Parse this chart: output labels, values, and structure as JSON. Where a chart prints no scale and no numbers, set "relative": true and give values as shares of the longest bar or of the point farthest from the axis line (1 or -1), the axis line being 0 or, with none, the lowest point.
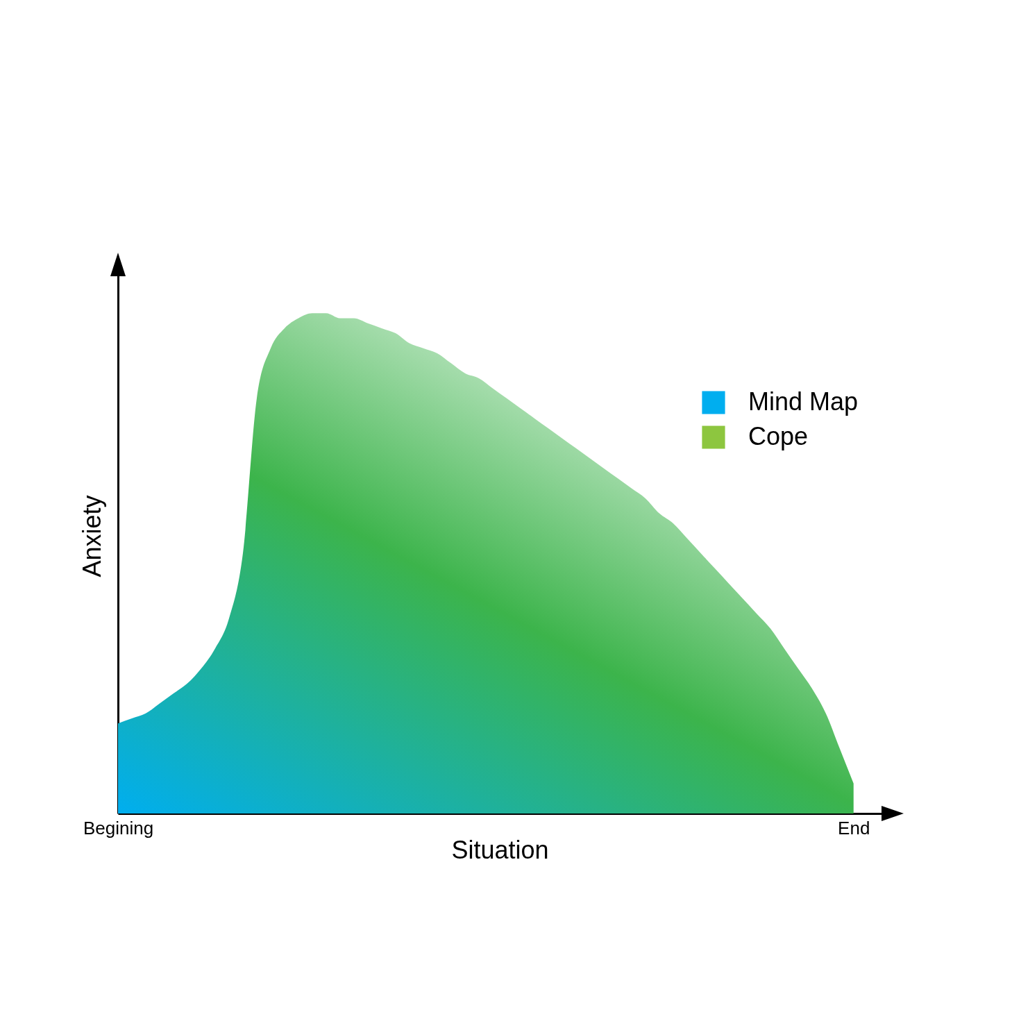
{
  "chart_data": {
    "type": "area",
    "relative": true,
    "xlabel": "Situation",
    "ylabel": "Anxiety",
    "categories": [
      "Begining",
      null,
      null,
      null,
      null,
      null,
      null,
      null,
      null,
      null,
      null,
      null,
      null,
      null,
      null,
      null,
      null,
      null,
      null,
      null,
      null,
      null,
      null,
      null,
      null,
      null,
      null,
      null,
      null,
      null,
      null,
      null,
      null,
      null,
      null,
      null,
      null,
      null,
      null,
      null,
      null,
      null,
      null,
      null,
      null,
      null,
      null,
      null,
      null,
      null,
      null,
      null,
      null,
      "End"
    ],
    "series": [
      {
        "name": "Mind Map",
        "color": "#00aeef",
        "values": [
          0.18,
          0.19,
          0.2,
          0.22,
          0.24,
          0.26,
          0.29,
          0.33,
          0.39,
          0.52,
          0.83,
          0.93,
          0.97,
          0.99,
          1,
          1,
          0.99,
          0.99,
          0.98,
          0.97,
          0.96,
          0.94,
          0.93,
          0.92,
          0.9,
          0.88,
          0.87,
          0.85,
          0.83,
          0.81,
          0.79,
          0.77,
          0.75,
          0.73,
          0.71,
          0.69,
          0.67,
          0.65,
          0.63,
          0.6,
          0.58,
          0.55,
          0.52,
          0.49,
          0.46,
          0.43,
          0.4,
          0.37,
          0.33,
          0.29,
          0.25,
          0.2,
          0.13,
          0.06
        ]
      },
      {
        "name": "Cope",
        "color": "#8dc63f",
        "values": [
          null,
          null,
          null,
          null,
          null,
          null,
          null,
          null,
          null,
          null,
          null,
          null,
          null,
          null,
          null,
          null,
          null,
          null,
          null,
          null,
          null,
          null,
          null,
          null,
          null,
          null,
          null,
          null,
          null,
          null,
          null,
          null,
          null,
          null,
          null,
          null,
          null,
          null,
          null,
          null,
          null,
          null,
          null,
          null,
          null,
          null,
          null,
          null,
          null,
          null,
          null,
          null,
          null,
          null
        ]
      }
    ],
    "legend": "top right"
  }
}
